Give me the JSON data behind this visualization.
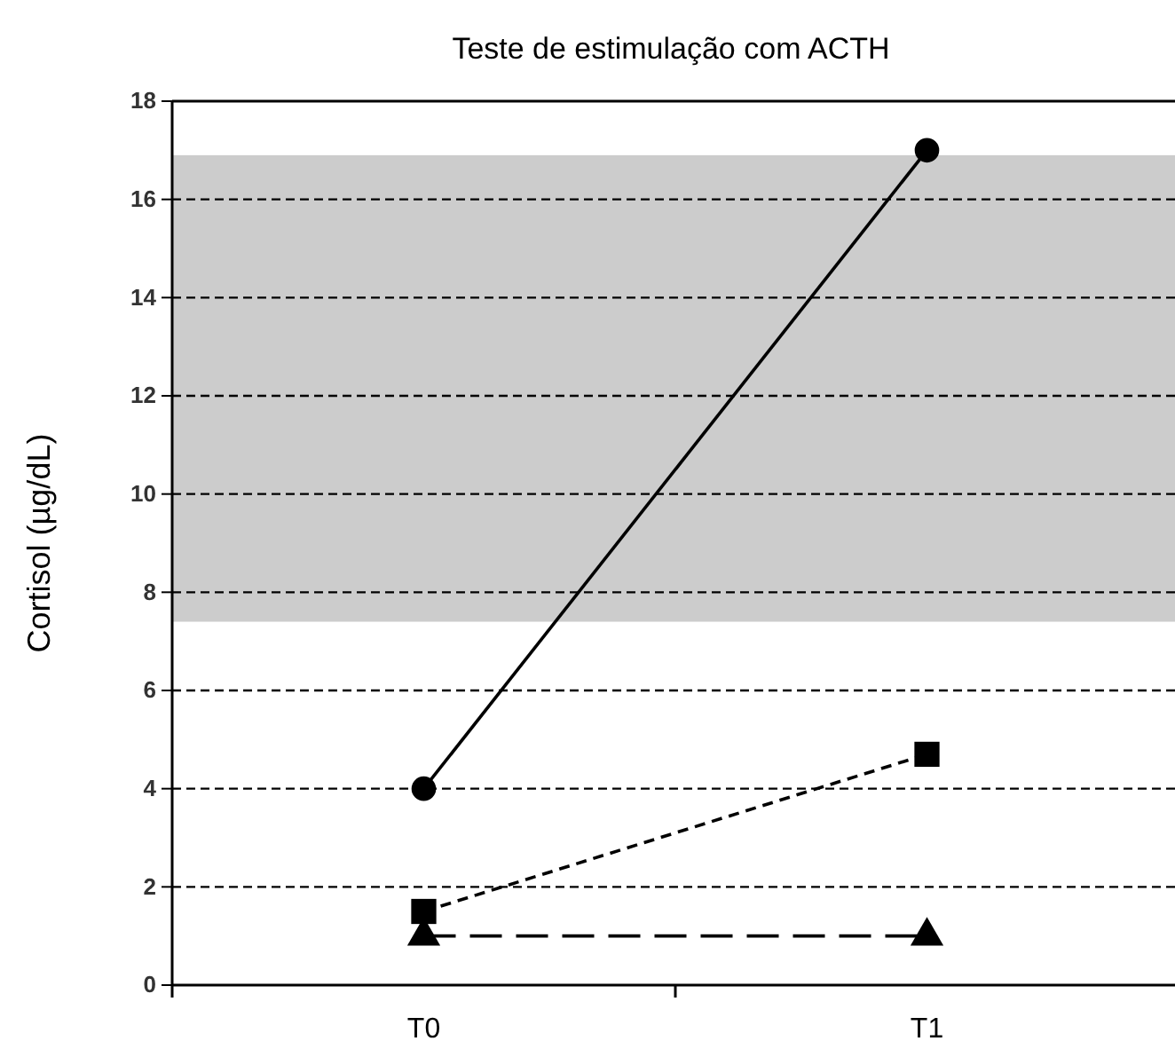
{
  "chart_data": {
    "type": "line",
    "title": "Teste de estimulação com ACTH",
    "ylabel": "Cortisol (µg/dL)",
    "categories": [
      "T0",
      "T1"
    ],
    "series": [
      {
        "color": "#000000",
        "values": [
          4,
          17
        ],
        "marker": "circle",
        "line_style": "solid"
      },
      {
        "color": "#000000",
        "values": [
          1.5,
          4.7
        ],
        "marker": "square",
        "line_style": "dashed"
      },
      {
        "color": "#000000",
        "values": [
          1,
          1
        ],
        "marker": "triangle",
        "line_style": "dashed"
      }
    ],
    "ylim": [
      0,
      18
    ],
    "yticks": [
      0,
      2,
      4,
      6,
      8,
      10,
      12,
      14,
      16,
      18
    ],
    "grid": "y",
    "bands": [
      {
        "axis": "y",
        "from": 7.4,
        "to": 16.9,
        "color": "#cccccc"
      }
    ]
  }
}
